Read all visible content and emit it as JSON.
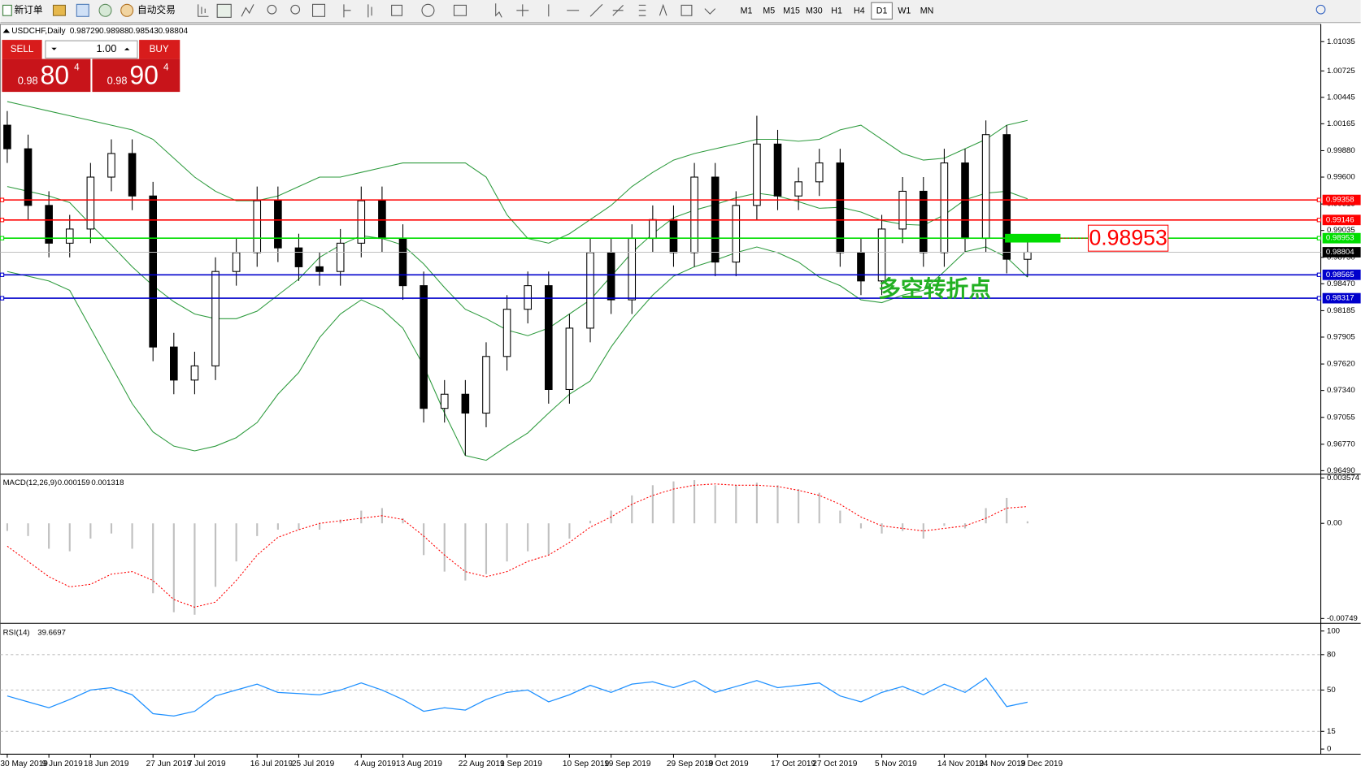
{
  "toolbar": {
    "new_order": "新订单",
    "auto_trade": "自动交易",
    "timeframes": [
      "M1",
      "M5",
      "M15",
      "M30",
      "H1",
      "H4",
      "D1",
      "W1",
      "MN"
    ],
    "active_timeframe": 6
  },
  "trade_panel": {
    "sell": "SELL",
    "buy": "BUY",
    "lot": "1.00",
    "sell_price": {
      "prefix": "0.98",
      "big": "80",
      "sup": "4"
    },
    "buy_price": {
      "prefix": "0.98",
      "big": "90",
      "sup": "4"
    }
  },
  "chart_data": [
    {
      "type": "candlestick",
      "symbol": "USDCHF,Daily",
      "categories": [
        "30 May 2019",
        null,
        "9 Jun 2019",
        null,
        "18 Jun 2019",
        null,
        null,
        "27 Jun 2019",
        null,
        "7 Jul 2019",
        null,
        null,
        "16 Jul 2019",
        null,
        "25 Jul 2019",
        null,
        null,
        "4 Aug 2019",
        null,
        "13 Aug 2019",
        null,
        null,
        "22 Aug 2019",
        null,
        "1 Sep 2019",
        null,
        null,
        "10 Sep 2019",
        null,
        "19 Sep 2019",
        null,
        null,
        "29 Sep 2019",
        null,
        "8 Oct 2019",
        null,
        null,
        "17 Oct 2019",
        null,
        "27 Oct 2019",
        null,
        null,
        "5 Nov 2019",
        null,
        null,
        "14 Nov 2019",
        null,
        "24 Nov 2019",
        null,
        "3 Dec 2019"
      ],
      "open": [
        1.0015,
        0.999,
        0.993,
        0.989,
        0.9905,
        0.996,
        0.9985,
        0.994,
        0.978,
        0.9745,
        0.976,
        0.986,
        0.988,
        0.9935,
        0.9885,
        0.9865,
        0.986,
        0.989,
        0.9935,
        0.9895,
        0.9845,
        0.9715,
        0.973,
        0.971,
        0.977,
        0.982,
        0.9845,
        0.9735,
        0.98,
        0.988,
        0.983,
        0.9895,
        0.9915,
        0.988,
        0.996,
        0.987,
        0.993,
        0.9995,
        0.994,
        0.9955,
        0.9975,
        0.988,
        0.985,
        0.9905,
        0.9945,
        0.988,
        0.9975,
        0.9895,
        1.0005,
        0.98729
      ],
      "high": [
        1.003,
        1.0005,
        0.9945,
        0.992,
        0.9975,
        1.0,
        1.0,
        0.9955,
        0.9795,
        0.9775,
        0.9875,
        0.9895,
        0.995,
        0.995,
        0.99,
        0.988,
        0.9905,
        0.995,
        0.995,
        0.991,
        0.986,
        0.9745,
        0.9745,
        0.9785,
        0.9835,
        0.986,
        0.986,
        0.9815,
        0.9895,
        0.9895,
        0.991,
        0.993,
        0.993,
        0.9975,
        0.9975,
        0.9945,
        1.0025,
        1.001,
        0.997,
        0.999,
        0.999,
        0.9895,
        0.992,
        0.996,
        0.996,
        0.999,
        0.999,
        1.002,
        1.0015,
        0.98988
      ],
      "low": [
        0.9975,
        0.9915,
        0.9875,
        0.9875,
        0.989,
        0.9945,
        0.9925,
        0.9765,
        0.973,
        0.973,
        0.9745,
        0.9845,
        0.9865,
        0.987,
        0.985,
        0.9845,
        0.9845,
        0.9875,
        0.988,
        0.983,
        0.97,
        0.97,
        0.9665,
        0.9695,
        0.9755,
        0.9805,
        0.972,
        0.972,
        0.9785,
        0.9815,
        0.9815,
        0.988,
        0.9865,
        0.9865,
        0.9855,
        0.9855,
        0.9915,
        0.9925,
        0.9925,
        0.994,
        0.9865,
        0.9835,
        0.9835,
        0.989,
        0.9865,
        0.9865,
        0.988,
        0.988,
        0.9858,
        0.98543
      ],
      "close": [
        0.999,
        0.993,
        0.989,
        0.9905,
        0.996,
        0.9985,
        0.994,
        0.978,
        0.9745,
        0.976,
        0.986,
        0.988,
        0.9935,
        0.9885,
        0.9865,
        0.986,
        0.989,
        0.9935,
        0.9895,
        0.9845,
        0.9715,
        0.973,
        0.971,
        0.977,
        0.982,
        0.9845,
        0.9735,
        0.98,
        0.988,
        0.983,
        0.9895,
        0.9915,
        0.988,
        0.996,
        0.987,
        0.993,
        0.9995,
        0.994,
        0.9955,
        0.9975,
        0.988,
        0.985,
        0.9905,
        0.9945,
        0.988,
        0.9975,
        0.9895,
        1.0005,
        0.9873,
        0.98804
      ],
      "up_color": "#ffffff",
      "down_color": "#000000",
      "current_color": "#c0c0c0",
      "overlays": [
        {
          "color": "#2e9b3e",
          "values": [
            1.004,
            1.0035,
            1.003,
            1.0025,
            1.002,
            1.0015,
            1.001,
            1.0,
            0.998,
            0.996,
            0.9945,
            0.9935,
            0.9935,
            0.994,
            0.995,
            0.996,
            0.996,
            0.9965,
            0.997,
            0.9975,
            0.9975,
            0.9975,
            0.9975,
            0.996,
            0.992,
            0.9895,
            0.989,
            0.99,
            0.9915,
            0.993,
            0.995,
            0.9965,
            0.9978,
            0.9985,
            0.999,
            0.9995,
            1.0,
            1.0,
            0.9998,
            1.0,
            1.001,
            1.0015,
            1.0,
            0.9985,
            0.9978,
            0.998,
            0.999,
            1.0,
            1.0015,
            1.002
          ]
        },
        {
          "color": "#2e9b3e",
          "values": [
            0.995,
            0.9945,
            0.994,
            0.9933,
            0.991,
            0.9888,
            0.9865,
            0.9845,
            0.9828,
            0.9815,
            0.981,
            0.981,
            0.9818,
            0.9835,
            0.9852,
            0.9875,
            0.9888,
            0.9898,
            0.9895,
            0.9888,
            0.9868,
            0.9843,
            0.982,
            0.981,
            0.9798,
            0.9792,
            0.98,
            0.9815,
            0.983,
            0.9855,
            0.988,
            0.99,
            0.9917,
            0.9925,
            0.9931,
            0.9938,
            0.9943,
            0.994,
            0.9934,
            0.9927,
            0.9928,
            0.9923,
            0.9914,
            0.991,
            0.9909,
            0.992,
            0.9936,
            0.9943,
            0.9945,
            0.9937
          ]
        },
        {
          "color": "#2e9b3e",
          "values": [
            0.986,
            0.9855,
            0.985,
            0.984,
            0.98,
            0.976,
            0.972,
            0.969,
            0.9675,
            0.967,
            0.9675,
            0.9684,
            0.97,
            0.973,
            0.9753,
            0.979,
            0.9815,
            0.983,
            0.982,
            0.98,
            0.976,
            0.971,
            0.9665,
            0.966,
            0.9675,
            0.9689,
            0.971,
            0.973,
            0.9744,
            0.978,
            0.981,
            0.9835,
            0.9855,
            0.9865,
            0.9872,
            0.988,
            0.9886,
            0.988,
            0.987,
            0.9854,
            0.9845,
            0.983,
            0.9827,
            0.9835,
            0.984,
            0.986,
            0.9881,
            0.9886,
            0.9875,
            0.9854
          ]
        }
      ],
      "hlines": [
        {
          "value": 0.99358,
          "color": "#ff0000"
        },
        {
          "value": 0.99146,
          "color": "#ff0000"
        },
        {
          "value": 0.98953,
          "color": "#00dd00"
        },
        {
          "value": 0.98565,
          "color": "#0000cc"
        },
        {
          "value": 0.98317,
          "color": "#0000cc"
        }
      ],
      "marked_line": 2,
      "annotation": {
        "text": "多空转折点",
        "color": "#22b022"
      },
      "ylim": [
        0.96462,
        1.01219
      ],
      "yticks": [
        1.01035,
        1.00725,
        1.00445,
        1.00165,
        {
          "value": 0.9988,
          "label": "0.99880"
        },
        {
          "value": 0.996,
          "label": "0.99600"
        },
        0.99315,
        0.99035,
        {
          "value": 0.9875,
          "label": "0.98750"
        },
        {
          "value": 0.9847,
          "label": "0.98470"
        },
        0.98185,
        0.97905,
        {
          "value": 0.9762,
          "label": "0.97620"
        },
        {
          "value": 0.9734,
          "label": "0.97340"
        },
        0.97055,
        {
          "value": 0.9677,
          "label": "0.96770"
        },
        {
          "value": 0.9649,
          "label": "0.96490"
        }
      ]
    },
    {
      "type": "macd",
      "title": "MACD(12,26,9)",
      "histogram": {
        "color": "#c0c0c0",
        "values": [
          -0.0006,
          -0.001,
          -0.002,
          -0.0022,
          -0.0012,
          -0.0008,
          -0.002,
          -0.0055,
          -0.007,
          -0.0072,
          -0.005,
          -0.003,
          -0.001,
          -0.0005,
          -0.0005,
          -0.0005,
          0.0003,
          0.001,
          0.0012,
          0.0004,
          -0.0025,
          -0.0038,
          -0.0045,
          -0.004,
          -0.003,
          -0.0022,
          -0.0025,
          -0.0012,
          0.0002,
          0.001,
          0.0022,
          0.003,
          0.0033,
          0.0034,
          0.003,
          0.003,
          0.0032,
          0.003,
          0.0027,
          0.0024,
          0.001,
          -0.0004,
          -0.0008,
          -0.0006,
          -0.0012,
          -0.0002,
          -0.0004,
          0.0012,
          0.002,
          0.000159
        ]
      },
      "signal": {
        "color": "#ff0000",
        "values": [
          -0.0018,
          -0.003,
          -0.0042,
          -0.005,
          -0.0048,
          -0.004,
          -0.0038,
          -0.0045,
          -0.006,
          -0.0066,
          -0.0062,
          -0.0045,
          -0.0025,
          -0.0011,
          -0.0005,
          0.0,
          0.0002,
          0.0004,
          0.0006,
          0.0003,
          -0.001,
          -0.0025,
          -0.0038,
          -0.0042,
          -0.0038,
          -0.003,
          -0.0025,
          -0.0015,
          -0.0003,
          0.0005,
          0.0015,
          0.0022,
          0.0027,
          0.003,
          0.0031,
          0.003,
          0.003,
          0.0029,
          0.0026,
          0.0022,
          0.0015,
          0.0005,
          -0.0002,
          -0.0004,
          -0.0006,
          -0.0004,
          -0.0002,
          0.0004,
          0.0012,
          0.001318
        ]
      },
      "ylim": [
        -0.0078,
        0.0038
      ],
      "yticks": [
        0.003574,
        {
          "value": 0,
          "label": "0.00"
        },
        -0.00749
      ]
    },
    {
      "type": "line",
      "title": "RSI(14)",
      "color": "#1e90ff",
      "values": [
        45,
        40,
        35,
        42,
        50,
        52,
        46,
        30,
        28,
        32,
        45,
        50,
        55,
        48,
        47,
        46,
        50,
        56,
        50,
        42,
        32,
        35,
        33,
        42,
        48,
        50,
        40,
        46,
        54,
        48,
        55,
        57,
        52,
        58,
        48,
        53,
        58,
        52,
        54,
        56,
        45,
        40,
        48,
        53,
        46,
        55,
        48,
        60,
        36,
        39.6697
      ],
      "ylim": [
        -3.6,
        105.8
      ],
      "yticks": [
        100,
        80,
        50,
        15,
        0
      ],
      "dashed_levels": true
    }
  ]
}
